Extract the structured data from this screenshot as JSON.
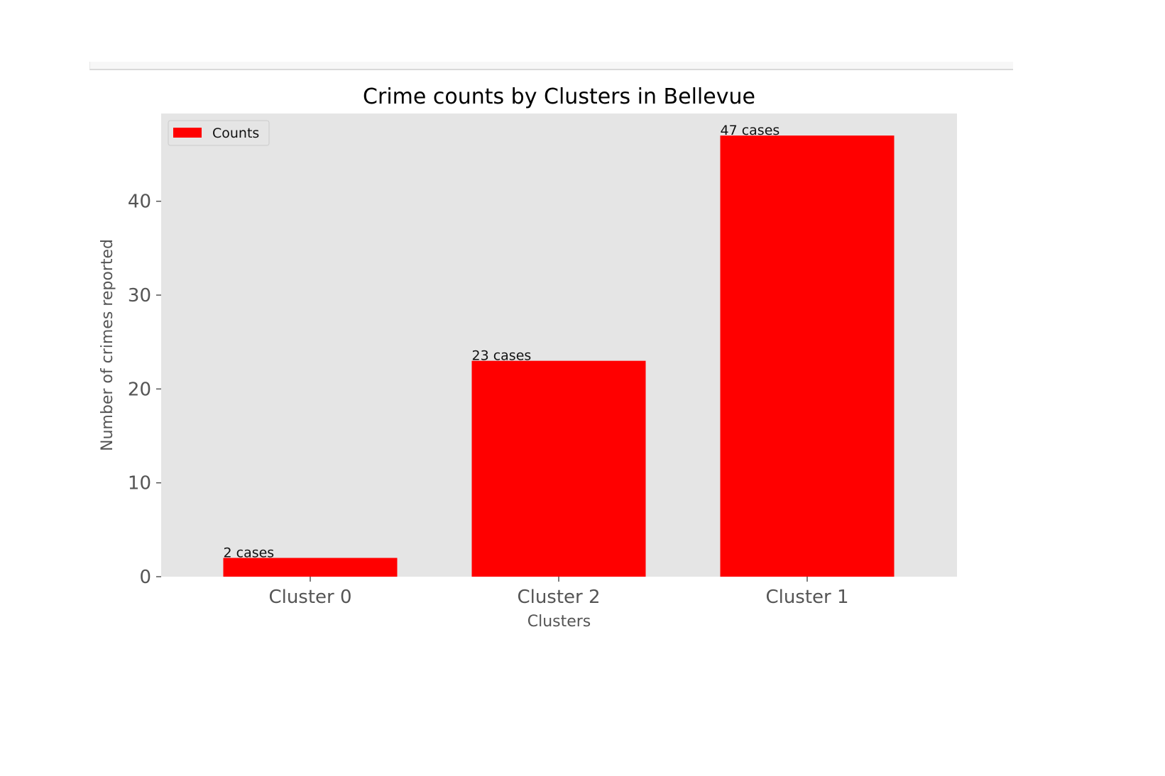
{
  "chart_data": {
    "type": "bar",
    "title": "Crime counts by Clusters in Bellevue",
    "xlabel": "Clusters",
    "ylabel": "Number of crimes reported",
    "categories": [
      "Cluster 0",
      "Cluster 2",
      "Cluster 1"
    ],
    "series": [
      {
        "name": "Counts",
        "values": [
          2,
          23,
          47
        ],
        "color": "#ff0000"
      }
    ],
    "data_labels": [
      "2 cases",
      "23 cases",
      "47 cases"
    ],
    "yticks": [
      0,
      10,
      20,
      30,
      40
    ],
    "ylim": [
      0,
      49.35
    ],
    "grid": false,
    "legend_position": "upper-left",
    "colors": {
      "plot_background": "#e5e5e5",
      "bar": "#ff0000",
      "tick_text": "#555555",
      "title_text": "#000000"
    }
  }
}
